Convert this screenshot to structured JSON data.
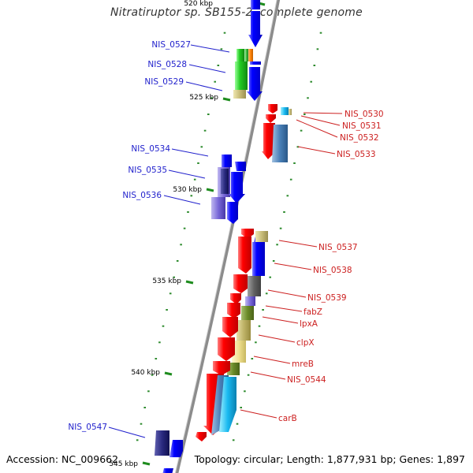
{
  "title": "Nitratiruptor sp. SB155-2, complete genome",
  "footer": {
    "accession": "Accession: NC_009662",
    "topology": "Topology: circular; Length: 1,877,931 bp; Genes: 1,897"
  },
  "scale_labels": [
    "520 kbp",
    "525 kbp",
    "530 kbp",
    "535 kbp",
    "540 kbp",
    "545 kbp"
  ],
  "genes": {
    "left": [
      {
        "label": "NIS_0527",
        "color": "#1f1fcc"
      },
      {
        "label": "NIS_0528",
        "color": "#1f1fcc"
      },
      {
        "label": "NIS_0529",
        "color": "#1f1fcc"
      },
      {
        "label": "NIS_0534",
        "color": "#1f1fcc"
      },
      {
        "label": "NIS_0535",
        "color": "#1f1fcc"
      },
      {
        "label": "NIS_0536",
        "color": "#1f1fcc"
      },
      {
        "label": "NIS_0547",
        "color": "#1f1fcc"
      }
    ],
    "right": [
      {
        "label": "NIS_0530",
        "color": "#cc1f1f"
      },
      {
        "label": "NIS_0531",
        "color": "#cc1f1f"
      },
      {
        "label": "NIS_0532",
        "color": "#cc1f1f"
      },
      {
        "label": "NIS_0533",
        "color": "#cc1f1f"
      },
      {
        "label": "NIS_0537",
        "color": "#cc1f1f"
      },
      {
        "label": "NIS_0538",
        "color": "#cc1f1f"
      },
      {
        "label": "NIS_0539",
        "color": "#cc1f1f"
      },
      {
        "label": "fabZ",
        "color": "#cc1f1f"
      },
      {
        "label": "lpxA",
        "color": "#cc1f1f"
      },
      {
        "label": "clpX",
        "color": "#cc1f1f"
      },
      {
        "label": "mreB",
        "color": "#cc1f1f"
      },
      {
        "label": "NIS_0544",
        "color": "#cc1f1f"
      },
      {
        "label": "carB",
        "color": "#cc1f1f"
      }
    ]
  },
  "colors": {
    "backbone": "#8c8c8c",
    "tick": "#1e8c1e",
    "forward_label": "#1f1fcc",
    "reverse_label": "#cc1f1f",
    "forward_gene": "#0000ff",
    "reverse_gene": "#ff0000"
  }
}
